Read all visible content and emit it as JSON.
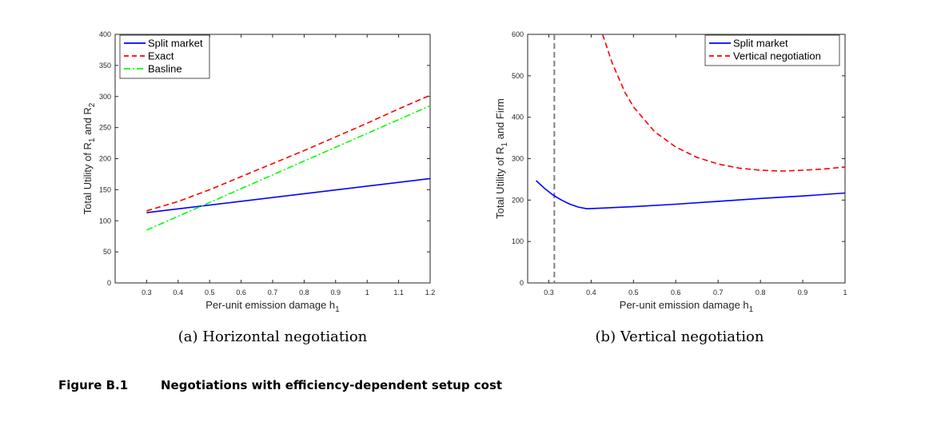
{
  "figure": {
    "label": "Figure B.1",
    "caption": "Negotiations with efficiency-dependent setup cost"
  },
  "chart_data": [
    {
      "type": "line",
      "caption": "(a) Horizontal negotiation",
      "xlabel": "Per-unit emission damage h",
      "xlabel_sub": "1",
      "ylabel_parts": [
        "Total Utility of R",
        "1",
        " and R",
        "2"
      ],
      "xlim": [
        0.2,
        1.2
      ],
      "ylim": [
        0,
        400
      ],
      "xticks": [
        0.3,
        0.4,
        0.5,
        0.6,
        0.7,
        0.8,
        0.9,
        1,
        1.1,
        1.2
      ],
      "xtick_labels": [
        "0.3",
        "0.4",
        "0.5",
        "0.6",
        "0.7",
        "0.8",
        "0.9",
        "1",
        "1.1",
        "1.2"
      ],
      "yticks": [
        0,
        50,
        100,
        150,
        200,
        250,
        300,
        350,
        400
      ],
      "ytick_labels": [
        "0",
        "50",
        "100",
        "150",
        "200",
        "250",
        "300",
        "350",
        "400"
      ],
      "grid": false,
      "legend_position": "top-left",
      "series": [
        {
          "name": "Split market",
          "color": "#0000ff",
          "dash": "solid",
          "x": [
            0.3,
            1.2
          ],
          "y": [
            113,
            168
          ]
        },
        {
          "name": "Exact",
          "color": "#ff0000",
          "dash": "dashed",
          "x": [
            0.3,
            0.4,
            0.5,
            0.6,
            0.7,
            0.8,
            0.9,
            1.0,
            1.1,
            1.2
          ],
          "y": [
            116,
            131,
            150,
            171,
            192,
            213,
            235,
            257,
            280,
            302
          ]
        },
        {
          "name": "Basline",
          "color": "#00ff00",
          "dash": "dashdot",
          "x": [
            0.3,
            1.2
          ],
          "y": [
            85,
            285
          ]
        }
      ]
    },
    {
      "type": "line",
      "caption": "(b) Vertical negotiation",
      "xlabel": "Per-unit emission damage h",
      "xlabel_sub": "1",
      "ylabel_parts": [
        "Total Utility of R",
        "1",
        " and Firm"
      ],
      "xlim": [
        0.25,
        1.0
      ],
      "ylim": [
        0,
        600
      ],
      "xticks": [
        0.3,
        0.4,
        0.5,
        0.6,
        0.7,
        0.8,
        0.9,
        1
      ],
      "xtick_labels": [
        "0.3",
        "0.4",
        "0.5",
        "0.6",
        "0.7",
        "0.8",
        "0.9",
        "1"
      ],
      "yticks": [
        0,
        100,
        200,
        300,
        400,
        500,
        600
      ],
      "ytick_labels": [
        "0",
        "100",
        "200",
        "300",
        "400",
        "500",
        "600"
      ],
      "grid": false,
      "legend_position": "top-right",
      "vertical_line": {
        "x": 0.313,
        "color": "#808080",
        "dash": "dashed"
      },
      "series": [
        {
          "name": "Split market",
          "color": "#0000ff",
          "dash": "solid",
          "x": [
            0.27,
            0.29,
            0.31,
            0.33,
            0.35,
            0.37,
            0.39,
            0.5,
            0.6,
            0.7,
            0.8,
            0.9,
            1.0
          ],
          "y": [
            247,
            228,
            212,
            200,
            190,
            183,
            179,
            184,
            190,
            197,
            204,
            210,
            217
          ]
        },
        {
          "name": "Vertical negotiation",
          "color": "#ff0000",
          "dash": "dashed",
          "x": [
            0.427,
            0.45,
            0.48,
            0.5,
            0.55,
            0.6,
            0.65,
            0.7,
            0.75,
            0.8,
            0.85,
            0.9,
            0.95,
            1.0
          ],
          "y": [
            600,
            530,
            460,
            425,
            365,
            328,
            303,
            287,
            277,
            272,
            270,
            272,
            275,
            280
          ]
        }
      ]
    }
  ]
}
